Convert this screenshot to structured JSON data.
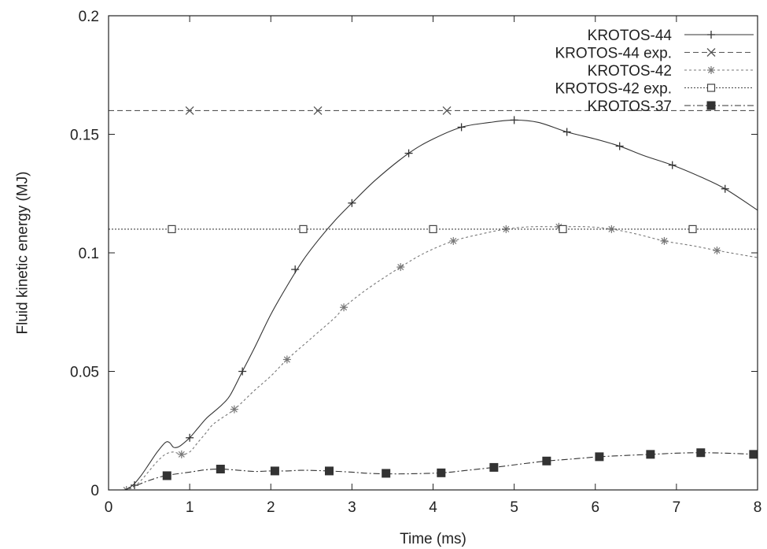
{
  "chart_data": {
    "type": "line",
    "title": "",
    "xlabel": "Time (ms)",
    "ylabel": "Fluid kinetic energy (MJ)",
    "xlim": [
      0,
      8
    ],
    "ylim": [
      0,
      0.2
    ],
    "x_ticks": [
      0,
      1,
      2,
      3,
      4,
      5,
      6,
      7,
      8
    ],
    "y_ticks": [
      0,
      0.05,
      0.1,
      0.15,
      0.2
    ],
    "x_tick_labels": [
      "0",
      "1",
      "2",
      "3",
      "4",
      "5",
      "6",
      "7",
      "8"
    ],
    "y_tick_labels": [
      "0",
      "0.05",
      "0.1",
      "0.15",
      "0.2"
    ],
    "grid": false,
    "legend_position": "top-right",
    "series": [
      {
        "name": "KROTOS-44",
        "line_style": "solid",
        "marker": "plus",
        "color": "#333333",
        "x": [
          0.2,
          0.3,
          0.4,
          0.5,
          0.6,
          0.7,
          0.75,
          0.8,
          0.85,
          0.9,
          1.0,
          1.1,
          1.2,
          1.3,
          1.4,
          1.5,
          1.65,
          1.8,
          2.0,
          2.2,
          2.4,
          2.6,
          2.8,
          3.0,
          3.3,
          3.7,
          4.0,
          4.35,
          4.7,
          5.0,
          5.3,
          5.65,
          6.0,
          6.3,
          6.6,
          6.95,
          7.3,
          7.6,
          8.0
        ],
        "y": [
          0.0,
          0.002,
          0.006,
          0.011,
          0.016,
          0.02,
          0.02,
          0.018,
          0.018,
          0.019,
          0.022,
          0.026,
          0.03,
          0.033,
          0.036,
          0.04,
          0.05,
          0.06,
          0.074,
          0.086,
          0.097,
          0.106,
          0.114,
          0.121,
          0.131,
          0.142,
          0.148,
          0.153,
          0.155,
          0.156,
          0.155,
          0.151,
          0.148,
          0.145,
          0.141,
          0.137,
          0.132,
          0.127,
          0.118
        ],
        "marker_x": [
          0.32,
          1.0,
          1.65,
          2.3,
          3.0,
          3.7,
          4.35,
          5.0,
          5.65,
          6.3,
          6.95,
          7.6
        ],
        "marker_y": [
          0.002,
          0.022,
          0.05,
          0.093,
          0.121,
          0.142,
          0.153,
          0.156,
          0.151,
          0.145,
          0.137,
          0.127
        ]
      },
      {
        "name": "KROTOS-44 exp.",
        "line_style": "dashed",
        "marker": "cross",
        "color": "#555555",
        "x": [
          0,
          8
        ],
        "y": [
          0.16,
          0.16
        ],
        "marker_x": [
          1.0,
          2.58,
          4.17
        ],
        "marker_y": [
          0.16,
          0.16,
          0.16
        ]
      },
      {
        "name": "KROTOS-42",
        "line_style": "dotted",
        "marker": "star",
        "color": "#777777",
        "x": [
          0.2,
          0.3,
          0.4,
          0.5,
          0.6,
          0.7,
          0.8,
          0.9,
          1.0,
          1.1,
          1.2,
          1.3,
          1.55,
          1.8,
          2.0,
          2.2,
          2.5,
          2.8,
          2.9,
          3.2,
          3.6,
          3.9,
          4.25,
          4.6,
          4.9,
          5.2,
          5.55,
          5.9,
          6.2,
          6.5,
          6.85,
          7.2,
          7.5,
          8.0
        ],
        "y": [
          0.0,
          0.001,
          0.004,
          0.008,
          0.012,
          0.015,
          0.016,
          0.015,
          0.016,
          0.02,
          0.024,
          0.028,
          0.034,
          0.042,
          0.048,
          0.055,
          0.064,
          0.073,
          0.077,
          0.085,
          0.094,
          0.1,
          0.105,
          0.108,
          0.11,
          0.111,
          0.111,
          0.111,
          0.11,
          0.108,
          0.105,
          0.103,
          0.101,
          0.098
        ],
        "marker_x": [
          0.22,
          0.9,
          1.55,
          2.2,
          2.9,
          3.6,
          4.25,
          4.9,
          5.55,
          6.2,
          6.85,
          7.5
        ],
        "marker_y": [
          0.0,
          0.015,
          0.034,
          0.055,
          0.077,
          0.094,
          0.105,
          0.11,
          0.111,
          0.11,
          0.105,
          0.101
        ]
      },
      {
        "name": "KROTOS-42 exp.",
        "line_style": "dotted-fine",
        "marker": "square-open",
        "color": "#444444",
        "x": [
          0,
          8
        ],
        "y": [
          0.11,
          0.11
        ],
        "marker_x": [
          0.78,
          2.4,
          4.0,
          5.6,
          7.2
        ],
        "marker_y": [
          0.11,
          0.11,
          0.11,
          0.11,
          0.11
        ]
      },
      {
        "name": "KROTOS-37",
        "line_style": "dash-dot",
        "marker": "square-filled",
        "color": "#333333",
        "x": [
          0.2,
          0.35,
          0.5,
          0.7,
          1.0,
          1.2,
          1.38,
          1.6,
          1.8,
          2.0,
          2.2,
          2.4,
          2.7,
          3.0,
          3.2,
          3.42,
          3.7,
          4.1,
          4.4,
          4.75,
          5.1,
          5.4,
          5.7,
          6.05,
          6.35,
          6.68,
          7.0,
          7.3,
          7.6,
          8.0
        ],
        "y": [
          0.0,
          0.002,
          0.004,
          0.006,
          0.0075,
          0.0085,
          0.0088,
          0.0083,
          0.0078,
          0.008,
          0.008,
          0.0083,
          0.008,
          0.0075,
          0.007,
          0.0068,
          0.0068,
          0.0072,
          0.0082,
          0.0095,
          0.011,
          0.0122,
          0.013,
          0.014,
          0.0145,
          0.015,
          0.0155,
          0.0157,
          0.0155,
          0.015
        ],
        "marker_x": [
          0.72,
          1.38,
          2.05,
          2.72,
          3.42,
          4.1,
          4.75,
          5.4,
          6.05,
          6.68,
          7.3,
          7.95
        ],
        "marker_y": [
          0.006,
          0.0088,
          0.008,
          0.008,
          0.007,
          0.0072,
          0.0095,
          0.0122,
          0.014,
          0.015,
          0.0157,
          0.015
        ]
      }
    ]
  }
}
